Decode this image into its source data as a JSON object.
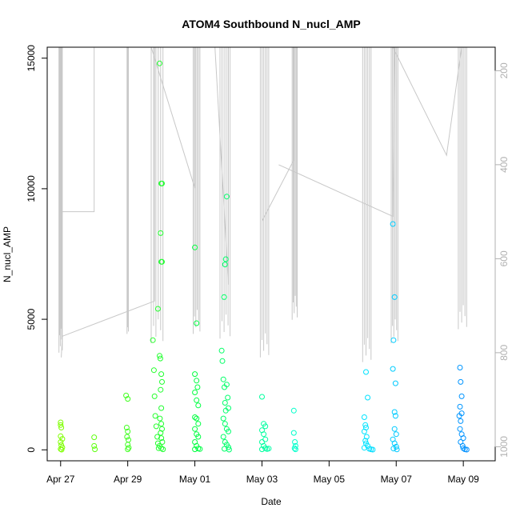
{
  "chart_data": {
    "type": "scatter",
    "title": "ATOM4 Southbound N_nucl_AMP",
    "xlabel": "Date",
    "ylabel": "N_nucl_AMP",
    "x_ticks": [
      "Apr 27",
      "Apr 29",
      "May 01",
      "May 03",
      "May 05",
      "May 07",
      "May 09"
    ],
    "x_tick_days": [
      0,
      2,
      4,
      6,
      8,
      10,
      12
    ],
    "xlim_days": [
      -0.4,
      12.95
    ],
    "ylim": [
      -420,
      15420
    ],
    "y_ticks": [
      0,
      5000,
      10000,
      15000
    ],
    "y2_label": "",
    "y2_ticks": [
      200,
      400,
      600,
      800,
      1000
    ],
    "y2lim": [
      1030,
      150
    ],
    "grid": false,
    "legend": "none",
    "marker": "open-circle",
    "color_scale": [
      "#7fff00",
      "#00ff40",
      "#00ffff",
      "#0090ff"
    ],
    "secondary_line_color": "#c8c8c8",
    "points": [
      [
        0.0,
        1050
      ],
      [
        0.0,
        950
      ],
      [
        0.02,
        850
      ],
      [
        0.0,
        520
      ],
      [
        0.05,
        420
      ],
      [
        0.0,
        300
      ],
      [
        0.02,
        180
      ],
      [
        0.05,
        90
      ],
      [
        0.0,
        30
      ],
      [
        0.03,
        10
      ],
      [
        1.0,
        480
      ],
      [
        1.0,
        150
      ],
      [
        1.02,
        20
      ],
      [
        1.95,
        2080
      ],
      [
        2.0,
        1950
      ],
      [
        1.97,
        850
      ],
      [
        2.0,
        700
      ],
      [
        1.98,
        500
      ],
      [
        2.02,
        380
      ],
      [
        2.0,
        200
      ],
      [
        2.03,
        80
      ],
      [
        2.0,
        20
      ],
      [
        2.75,
        4200
      ],
      [
        2.78,
        3050
      ],
      [
        2.8,
        2050
      ],
      [
        2.82,
        1300
      ],
      [
        2.85,
        900
      ],
      [
        2.88,
        500
      ],
      [
        2.9,
        250
      ],
      [
        2.92,
        60
      ],
      [
        2.9,
        5400
      ],
      [
        2.95,
        14800
      ],
      [
        3.0,
        10200
      ],
      [
        3.02,
        10200
      ],
      [
        2.98,
        8300
      ],
      [
        3.0,
        7200
      ],
      [
        3.02,
        7200
      ],
      [
        2.95,
        3600
      ],
      [
        2.97,
        3500
      ],
      [
        3.0,
        2900
      ],
      [
        3.02,
        2600
      ],
      [
        2.98,
        2300
      ],
      [
        3.0,
        1600
      ],
      [
        2.96,
        1200
      ],
      [
        3.0,
        1000
      ],
      [
        3.02,
        800
      ],
      [
        2.98,
        650
      ],
      [
        3.0,
        450
      ],
      [
        3.03,
        300
      ],
      [
        2.95,
        150
      ],
      [
        3.0,
        60
      ],
      [
        3.05,
        20
      ],
      [
        4.0,
        7750
      ],
      [
        4.05,
        4850
      ],
      [
        4.0,
        2900
      ],
      [
        4.05,
        2650
      ],
      [
        4.08,
        2400
      ],
      [
        4.0,
        2200
      ],
      [
        4.05,
        1900
      ],
      [
        4.1,
        1700
      ],
      [
        4.0,
        1250
      ],
      [
        4.05,
        1200
      ],
      [
        4.1,
        1000
      ],
      [
        4.0,
        800
      ],
      [
        4.05,
        600
      ],
      [
        4.1,
        500
      ],
      [
        4.0,
        300
      ],
      [
        4.05,
        150
      ],
      [
        4.1,
        50
      ],
      [
        4.0,
        20
      ],
      [
        4.15,
        30
      ],
      [
        4.8,
        3800
      ],
      [
        4.82,
        3400
      ],
      [
        4.85,
        2700
      ],
      [
        4.88,
        2400
      ],
      [
        4.9,
        1800
      ],
      [
        4.92,
        1500
      ],
      [
        4.85,
        1200
      ],
      [
        4.95,
        9700
      ],
      [
        4.92,
        7300
      ],
      [
        4.9,
        7100
      ],
      [
        4.87,
        5850
      ],
      [
        4.95,
        2500
      ],
      [
        4.98,
        2000
      ],
      [
        5.0,
        1600
      ],
      [
        4.9,
        1000
      ],
      [
        4.95,
        800
      ],
      [
        5.0,
        700
      ],
      [
        4.85,
        500
      ],
      [
        4.9,
        300
      ],
      [
        4.95,
        200
      ],
      [
        5.0,
        100
      ],
      [
        4.88,
        40
      ],
      [
        5.02,
        10
      ],
      [
        6.0,
        2030
      ],
      [
        6.05,
        1000
      ],
      [
        6.1,
        900
      ],
      [
        6.0,
        750
      ],
      [
        6.05,
        600
      ],
      [
        6.1,
        400
      ],
      [
        6.0,
        300
      ],
      [
        6.05,
        150
      ],
      [
        6.1,
        60
      ],
      [
        6.0,
        20
      ],
      [
        6.15,
        30
      ],
      [
        6.2,
        50
      ],
      [
        6.95,
        1500
      ],
      [
        6.95,
        650
      ],
      [
        6.98,
        300
      ],
      [
        7.0,
        150
      ],
      [
        6.97,
        60
      ],
      [
        7.0,
        20
      ],
      [
        9.05,
        1250
      ],
      [
        9.1,
        2980
      ],
      [
        9.15,
        2000
      ],
      [
        9.08,
        950
      ],
      [
        9.1,
        850
      ],
      [
        9.05,
        700
      ],
      [
        9.12,
        500
      ],
      [
        9.08,
        350
      ],
      [
        9.1,
        250
      ],
      [
        9.15,
        150
      ],
      [
        9.05,
        80
      ],
      [
        9.2,
        40
      ],
      [
        9.25,
        20
      ],
      [
        9.3,
        10
      ],
      [
        9.9,
        8650
      ],
      [
        9.95,
        5850
      ],
      [
        9.92,
        4200
      ],
      [
        9.9,
        3100
      ],
      [
        9.98,
        2550
      ],
      [
        9.95,
        1450
      ],
      [
        9.98,
        1300
      ],
      [
        9.95,
        800
      ],
      [
        10.0,
        600
      ],
      [
        9.9,
        400
      ],
      [
        9.95,
        250
      ],
      [
        10.0,
        120
      ],
      [
        9.92,
        50
      ],
      [
        10.02,
        15
      ],
      [
        11.9,
        3150
      ],
      [
        11.92,
        2600
      ],
      [
        11.95,
        2050
      ],
      [
        11.9,
        1650
      ],
      [
        11.95,
        1400
      ],
      [
        11.88,
        1300
      ],
      [
        11.92,
        1100
      ],
      [
        11.9,
        800
      ],
      [
        11.95,
        600
      ],
      [
        12.0,
        450
      ],
      [
        11.92,
        300
      ],
      [
        11.98,
        150
      ],
      [
        12.0,
        60
      ],
      [
        12.05,
        20
      ],
      [
        12.1,
        10
      ]
    ],
    "secondary_segments": [
      [
        [
          0.0,
          150
        ],
        [
          0.0,
          500
        ],
        [
          1.0,
          500
        ],
        [
          1.0,
          150
        ]
      ],
      [
        [
          0.02,
          810
        ],
        [
          0.05,
          765
        ],
        [
          2.8,
          690
        ],
        [
          2.8,
          150
        ]
      ],
      [
        [
          2.7,
          150
        ],
        [
          4.0,
          450
        ],
        [
          4.0,
          150
        ]
      ],
      [
        [
          4.6,
          150
        ],
        [
          5.0,
          655
        ],
        [
          5.0,
          150
        ]
      ],
      [
        [
          6.0,
          150
        ],
        [
          6.0,
          520
        ],
        [
          6.95,
          390
        ],
        [
          6.95,
          150
        ]
      ],
      [
        [
          6.5,
          400
        ],
        [
          9.9,
          510
        ],
        [
          9.95,
          150
        ]
      ],
      [
        [
          9.9,
          150
        ],
        [
          11.5,
          380
        ],
        [
          11.95,
          150
        ]
      ]
    ],
    "vertical_spikes": [
      [
        -0.05,
        0.05,
        150,
        800
      ],
      [
        1.98,
        2.02,
        150,
        760
      ],
      [
        2.7,
        3.05,
        150,
        780
      ],
      [
        3.95,
        4.15,
        150,
        760
      ],
      [
        4.75,
        5.05,
        150,
        770
      ],
      [
        5.95,
        6.2,
        150,
        810
      ],
      [
        6.9,
        7.05,
        150,
        730
      ],
      [
        9.0,
        9.25,
        150,
        820
      ],
      [
        9.85,
        10.05,
        150,
        780
      ],
      [
        11.85,
        12.1,
        150,
        750
      ]
    ]
  }
}
